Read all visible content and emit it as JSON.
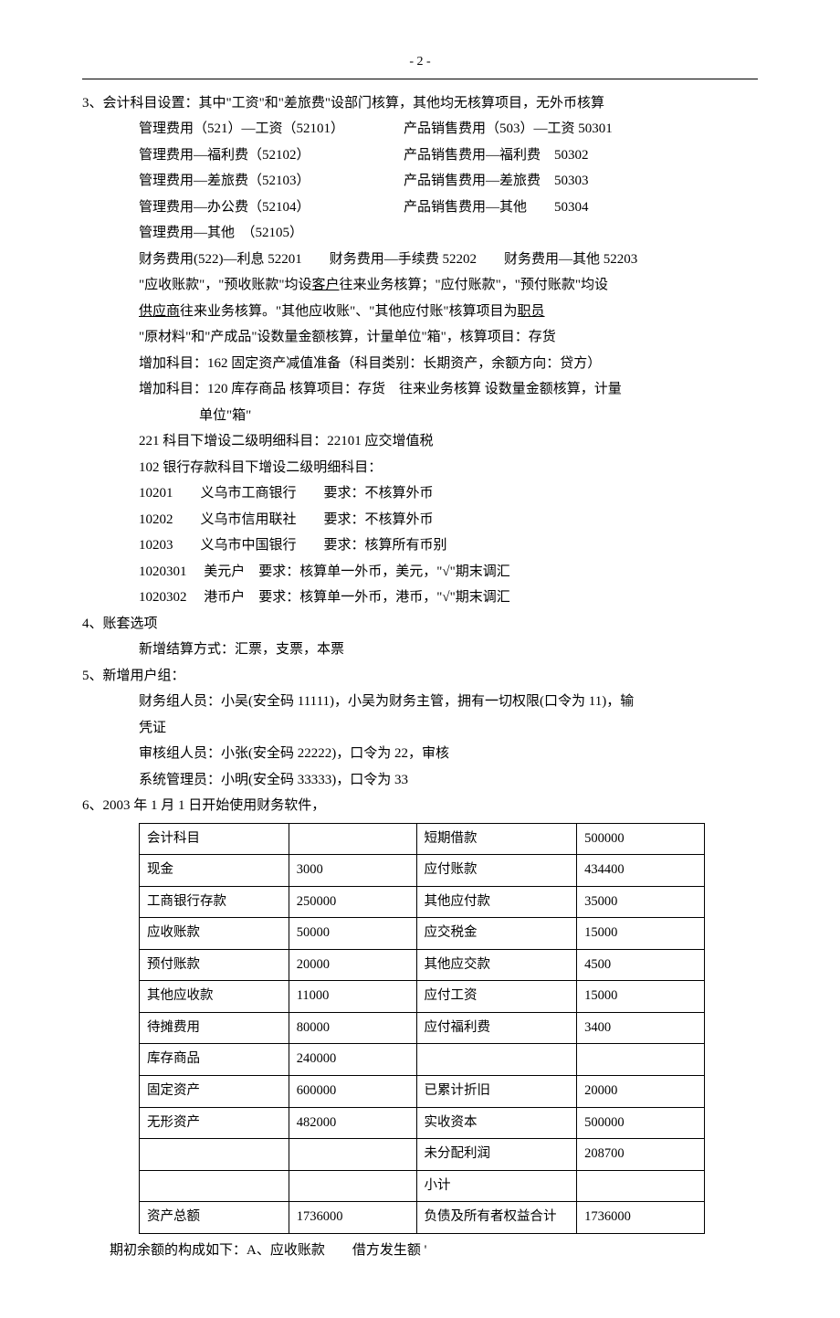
{
  "page_number": "- 2 -",
  "s3": {
    "title": "3、会计科目设置：其中\"工资\"和\"差旅费\"设部门核算，其他均无核算项目，无外币核算",
    "pairs": [
      [
        "管理费用（521）—工资（52101）",
        "产品销售费用（503）—工资 50301"
      ],
      [
        "管理费用—福利费（52102）",
        "产品销售费用—福利费　50302"
      ],
      [
        "管理费用—差旅费（52103）",
        "产品销售费用—差旅费　50303"
      ],
      [
        "管理费用—办公费（52104）",
        "产品销售费用—其他　　50304"
      ],
      [
        "管理费用—其他　（52105）",
        ""
      ]
    ],
    "fin_fee": [
      "财务费用(522)—利息 52201",
      "财务费用—手续费 52202",
      "财务费用—其他 52203"
    ],
    "ar_pre": "\"应收账款\"，\"预收账款\"均设",
    "ar_u": "客户",
    "ar_post": "往来业务核算；\"应付账款\"，\"预付账款\"均设",
    "sup_u": "供应商",
    "sup_post": "往来业务核算。\"其他应收账\"、\"其他应付账\"核算项目为",
    "emp_u": "职员",
    "raw": "\"原材料\"和\"产成品\"设数量金额核算，计量单位\"箱\"，核算项目：存货",
    "add1": "增加科目：162 固定资产减值准备（科目类别：长期资产，余额方向：贷方）",
    "add2a": "增加科目：120 库存商品 核算项目：存货　往来业务核算 设数量金额核算，计量",
    "add2b": "单位\"箱\"",
    "sub221": "221 科目下增设二级明细科目：22101 应交增值税",
    "sub102": "102 银行存款科目下增设二级明细科目：",
    "banks": [
      "10201　　义乌市工商银行　　要求：不核算外币",
      "10202　　义乌市信用联社　　要求：不核算外币",
      "10203　　义乌市中国银行　　要求：核算所有币别",
      "1020301　 美元户　要求：核算单一外币，美元，\"√\"期末调汇",
      "1020302　 港币户　要求：核算单一外币，港币，\"√\"期末调汇"
    ]
  },
  "s4": {
    "title": "4、账套选项",
    "line": "新增结算方式：汇票，支票，本票"
  },
  "s5": {
    "title": "5、新增用户组：",
    "l1a": "财务组人员：小吴(安全码 11111)，小吴为财务主管，拥有一切权限(口令为 11)，输",
    "l1b": "凭证",
    "l2": "审核组人员：小张(安全码 22222)，口令为 22，审核",
    "l3": "系统管理员：小明(安全码 33333)，口令为 33"
  },
  "s6": {
    "title": "6、2003 年 1 月 1 日开始使用财务软件，",
    "rows": [
      [
        "会计科目",
        "",
        "短期借款",
        "500000"
      ],
      [
        "现金",
        "3000",
        "应付账款",
        "434400"
      ],
      [
        "工商银行存款",
        "250000",
        "其他应付款",
        "35000"
      ],
      [
        "应收账款",
        "50000",
        "应交税金",
        "15000"
      ],
      [
        "预付账款",
        "20000",
        "其他应交款",
        "4500"
      ],
      [
        "其他应收款",
        "11000",
        "应付工资",
        "15000"
      ],
      [
        "待摊费用",
        "80000",
        "应付福利费",
        "3400"
      ],
      [
        "库存商品",
        "240000",
        "",
        ""
      ],
      [
        "固定资产",
        "600000",
        "已累计折旧",
        "20000"
      ],
      [
        "无形资产",
        "482000",
        "实收资本",
        "500000"
      ],
      [
        "",
        "",
        "未分配利润",
        "208700"
      ],
      [
        "",
        "",
        "小计",
        ""
      ],
      [
        "资产总额",
        "1736000",
        "负债及所有者权益合计",
        "1736000"
      ]
    ],
    "footer": "期初余额的构成如下：A、应收账款　　借方发生额 '"
  }
}
